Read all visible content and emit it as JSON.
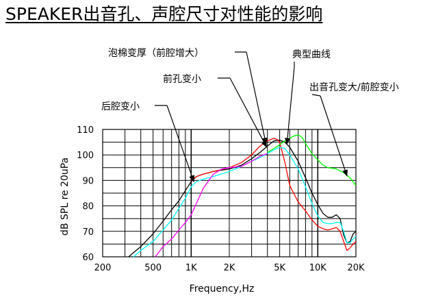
{
  "title": "SPEAKER出音孔、声腔尺寸对性能的影响",
  "chart_data": {
    "type": "line",
    "xlabel": "Frequency,Hz",
    "ylabel": "dB SPL re 20uPa",
    "xscale": "log",
    "xlim": [
      200,
      20000
    ],
    "ylim": [
      60,
      110
    ],
    "x_ticks": [
      200,
      500,
      1000,
      2000,
      5000,
      10000,
      20000
    ],
    "x_tick_labels": [
      "200",
      "500",
      "1K",
      "2K",
      "5K",
      "10K",
      "20K"
    ],
    "y_ticks": [
      60,
      70,
      80,
      90,
      100,
      110
    ],
    "y_tick_labels": [
      "60",
      "70",
      "80",
      "90",
      "100",
      "110"
    ],
    "grid": true,
    "series": [
      {
        "name": "典型曲线",
        "color": "#000000",
        "x": [
          320,
          400,
          500,
          600,
          700,
          800,
          900,
          1000,
          1100,
          1250,
          1500,
          2000,
          2500,
          3000,
          3500,
          4000,
          4500,
          5000,
          5500,
          6000,
          7000,
          8000,
          9000,
          10000,
          11000,
          12000,
          13000,
          14000,
          15000,
          16000,
          17000,
          18000,
          19000,
          20000
        ],
        "y": [
          60,
          64,
          69,
          74,
          78.5,
          82,
          86,
          89.5,
          91.5,
          92.5,
          93.5,
          94.5,
          96,
          98.5,
          101,
          103.5,
          105.5,
          105.8,
          105,
          103,
          97.5,
          91,
          85,
          80.5,
          77,
          75.5,
          75.5,
          76.5,
          75,
          68.5,
          65.5,
          66,
          69,
          70
        ]
      },
      {
        "name": "泡棉变厚（前腔增大）",
        "color": "#ff0000",
        "x": [
          1000,
          1100,
          1250,
          1500,
          2000,
          2500,
          3000,
          3500,
          4000,
          4500,
          4800,
          5000,
          5500,
          6000,
          7000,
          8000,
          9000,
          10000,
          11000,
          12000,
          13000,
          14000,
          15000,
          16000,
          17000,
          18000,
          19000,
          20000
        ],
        "y": [
          90,
          91.5,
          92.5,
          93.5,
          95,
          97,
          100,
          103.5,
          105.5,
          106.5,
          106,
          105,
          97,
          88,
          81.5,
          78,
          74.5,
          72,
          71,
          70.5,
          71,
          71.5,
          70,
          66,
          62.5,
          63.5,
          65,
          66
        ]
      },
      {
        "name": "前孔变小",
        "color": "#00ffff",
        "x": [
          350,
          400,
          500,
          600,
          700,
          800,
          900,
          1000,
          1100,
          1250,
          1500,
          2000,
          2500,
          3000,
          3500,
          4000,
          4500,
          5000,
          5500,
          6000,
          7000,
          8000,
          9000,
          10000,
          11000,
          12000,
          13000,
          14000,
          15000,
          16000,
          17000,
          18000,
          19000,
          20000
        ],
        "y": [
          60,
          62.5,
          66,
          70.5,
          74.5,
          79,
          83,
          87.5,
          89.5,
          90.5,
          91.5,
          93.5,
          95.5,
          97.5,
          99,
          100.5,
          102,
          103,
          102.5,
          100,
          94.5,
          87.5,
          81,
          76,
          73.5,
          73,
          73,
          73.5,
          73.5,
          70,
          65.5,
          65.5,
          67,
          68
        ]
      },
      {
        "name": "出音孔变大/前腔变小",
        "color": "#00ff00",
        "x": [
          4000,
          4500,
          5000,
          5500,
          6000,
          6500,
          7000,
          7500,
          8000,
          9000,
          10000,
          11000,
          12000,
          14000,
          16000,
          18000,
          20000
        ],
        "y": [
          101,
          102.5,
          104,
          105.5,
          106.5,
          107.5,
          107.8,
          107,
          104.5,
          100.5,
          98,
          96,
          95,
          94.5,
          93,
          91,
          88
        ]
      },
      {
        "name": "后腔变小",
        "color": "#ff00ff",
        "x": [
          520,
          600,
          700,
          800,
          900,
          1000,
          1100,
          1250,
          1500,
          1750,
          2000,
          2500,
          3000,
          3500,
          4000
        ],
        "y": [
          60,
          64,
          67,
          70.5,
          73.5,
          76.5,
          81,
          87,
          92.5,
          94.5,
          95,
          95.5,
          97.5,
          99.5,
          100.5
        ]
      }
    ],
    "annotations": [
      {
        "text": "泡棉变厚（前腔增大）",
        "target": [
          3900,
          104.3
        ]
      },
      {
        "text": "前孔变小",
        "target": [
          3950,
          103
        ]
      },
      {
        "text": "典型曲线",
        "target": [
          5700,
          104.2
        ]
      },
      {
        "text": "出音孔变大/前腔变小",
        "target": [
          17000,
          91.7
        ]
      },
      {
        "text": "后腔变小",
        "target": [
          1050,
          89.5
        ]
      }
    ]
  }
}
